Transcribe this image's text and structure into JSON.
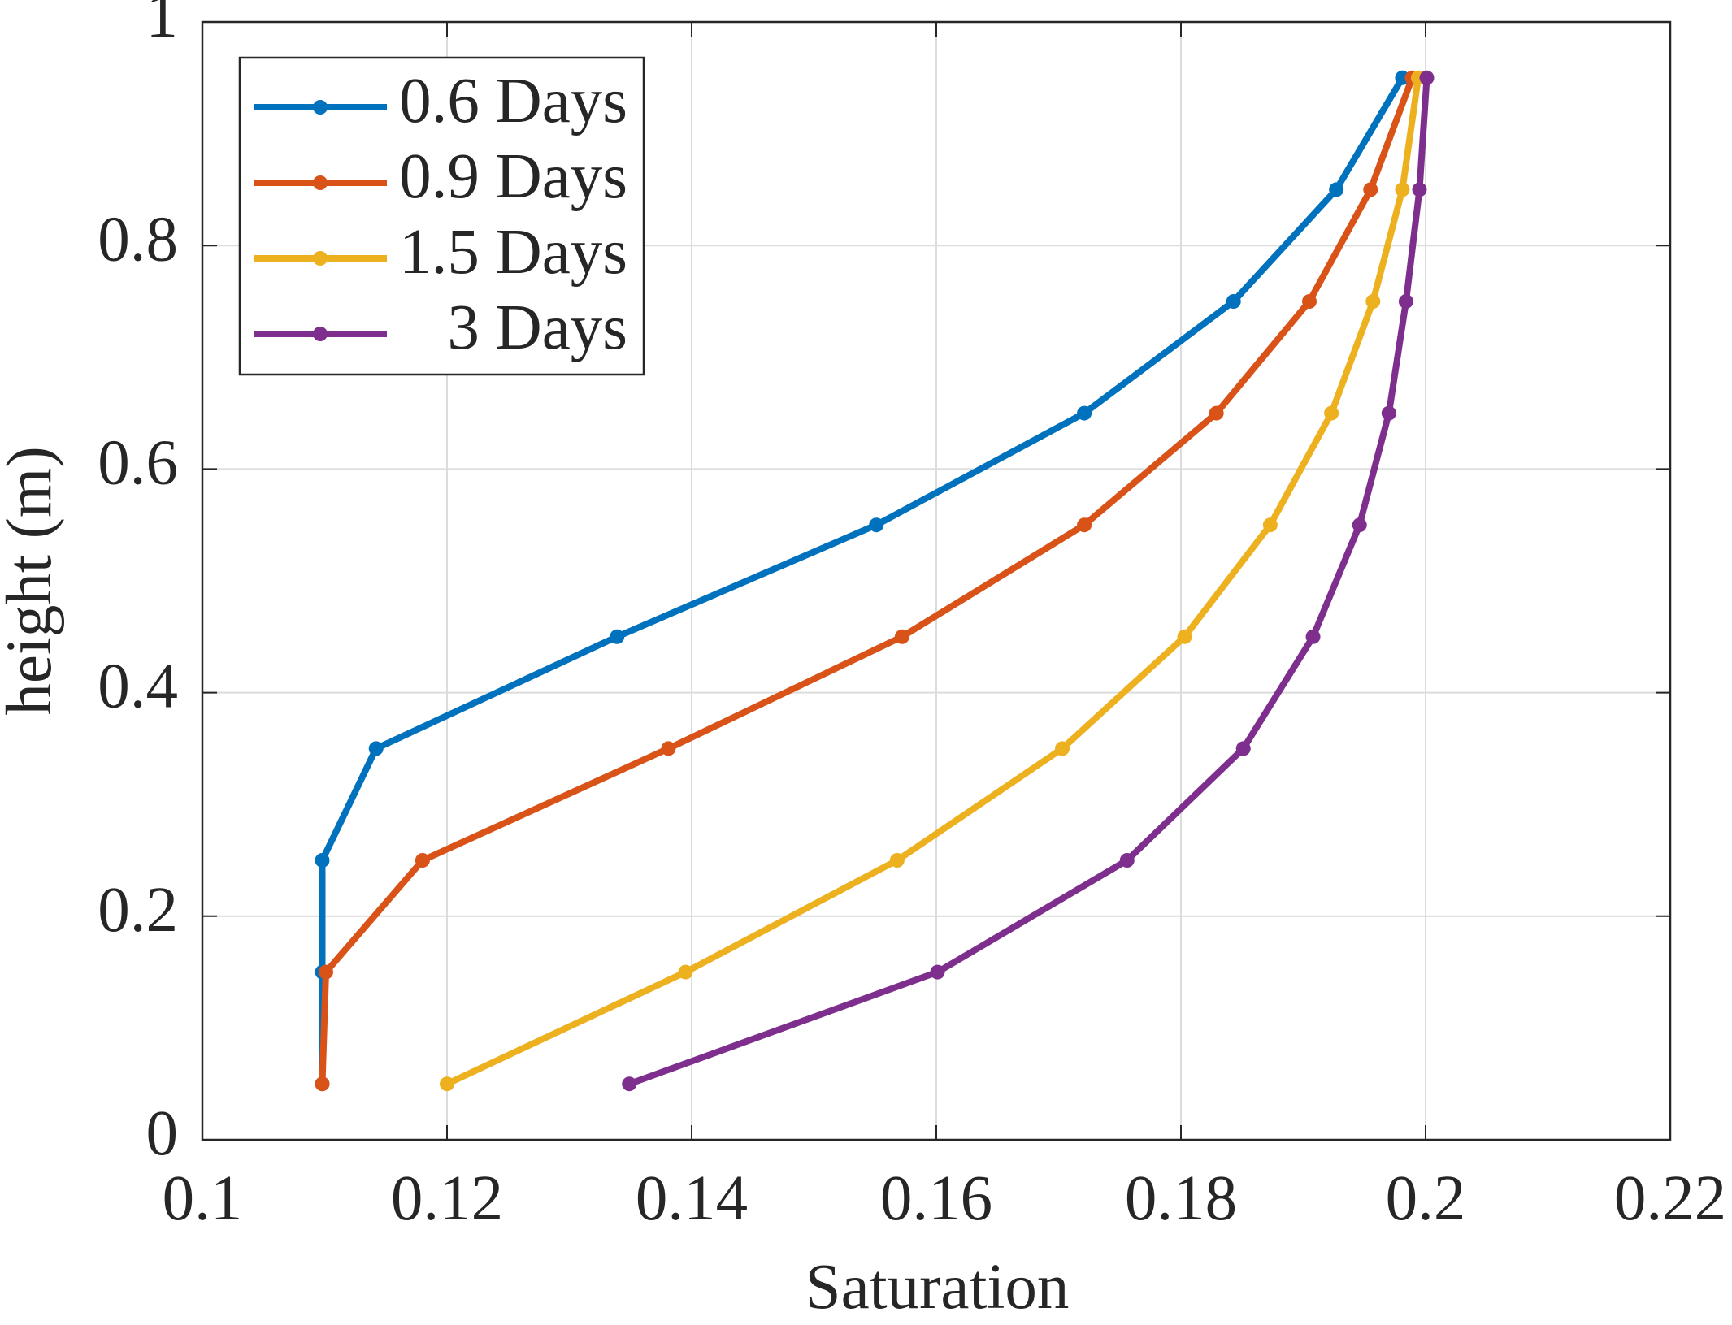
{
  "chart_data": {
    "type": "line",
    "xlabel": "Saturation",
    "ylabel": "height (m)",
    "y": [
      0.05,
      0.15,
      0.25,
      0.35,
      0.45,
      0.55,
      0.65,
      0.75,
      0.85,
      0.95
    ],
    "series": [
      {
        "name": "0.6 Days",
        "color": "#0072BD",
        "values": [
          0.1098,
          0.1098,
          0.1098,
          0.1142,
          0.1339,
          0.1551,
          0.1721,
          0.1843,
          0.1927,
          0.1981
        ]
      },
      {
        "name": "0.9 Days",
        "color": "#D95319",
        "values": [
          0.1098,
          0.1101,
          0.118,
          0.1381,
          0.1572,
          0.1721,
          0.1829,
          0.1905,
          0.1955,
          0.1989
        ]
      },
      {
        "name": "1.5 Days",
        "color": "#EDB120",
        "values": [
          0.12,
          0.1395,
          0.1568,
          0.1703,
          0.1803,
          0.1873,
          0.1923,
          0.1957,
          0.1981,
          0.1994
        ]
      },
      {
        "name": "3 Days",
        "color": "#7E2F8E",
        "values": [
          0.1349,
          0.1601,
          0.1756,
          0.1851,
          0.1908,
          0.1946,
          0.197,
          0.1984,
          0.1995,
          0.2001
        ]
      }
    ],
    "xlim": [
      0.1,
      0.22
    ],
    "xticks": [
      0.1,
      0.12,
      0.14,
      0.16,
      0.18,
      0.2,
      0.22
    ],
    "ylim": [
      0,
      1
    ],
    "yticks": [
      0,
      0.2,
      0.4,
      0.6,
      0.8,
      1
    ],
    "grid": true,
    "legend": "top-left"
  }
}
